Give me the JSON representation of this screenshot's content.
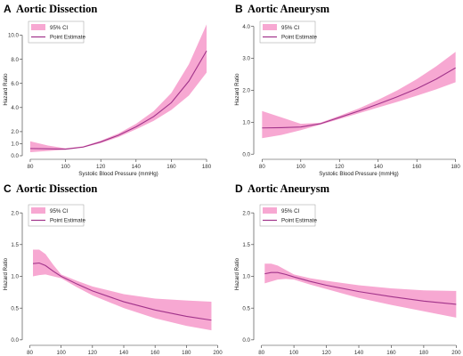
{
  "colors": {
    "ci_band": "#f7a8d2",
    "point_estimate": "#a1338a",
    "axis": "#333333"
  },
  "chart_data": [
    {
      "type": "line",
      "panel_label": "A",
      "title": "Aortic Dissection",
      "xlabel": "Systolic Blood Pressure (mmHg)",
      "ylabel": "Hazard Ratio",
      "xlim": [
        78,
        182
      ],
      "ylim": [
        0,
        11
      ],
      "x_ticks": [
        80,
        100,
        120,
        140,
        160,
        180
      ],
      "y_ticks": [
        0.0,
        1.0,
        2.0,
        4.0,
        6.0,
        8.0,
        10.0
      ],
      "y_tick_labels": [
        "0.0",
        "1.0",
        "2.0",
        "4.0",
        "6.0",
        "8.0",
        "10.0"
      ],
      "legend": {
        "position": "top-left",
        "entries": [
          "95% CI",
          "Point Estimate"
        ]
      },
      "x": [
        80,
        90,
        100,
        110,
        120,
        130,
        140,
        150,
        160,
        170,
        180
      ],
      "point_estimate": [
        0.6,
        0.58,
        0.55,
        0.72,
        1.15,
        1.7,
        2.4,
        3.25,
        4.4,
        6.2,
        8.7
      ],
      "ci_lower": [
        0.3,
        0.4,
        0.5,
        0.68,
        1.05,
        1.55,
        2.2,
        2.9,
        3.8,
        5.0,
        6.9
      ],
      "ci_upper": [
        1.2,
        0.85,
        0.62,
        0.78,
        1.25,
        1.85,
        2.65,
        3.7,
        5.2,
        7.6,
        10.9
      ]
    },
    {
      "type": "line",
      "panel_label": "B",
      "title": "Aortic Aneurysm",
      "xlabel": "Systolic Blood Pressure (mmHg)",
      "ylabel": "Hazard Ratio",
      "xlim": [
        78,
        182
      ],
      "ylim": [
        -0.05,
        4.1
      ],
      "x_ticks": [
        80,
        100,
        120,
        140,
        160,
        180
      ],
      "y_ticks": [
        0.0,
        1.0,
        2.0,
        3.0,
        4.0
      ],
      "y_tick_labels": [
        "0.0",
        "1.0",
        "2.0",
        "3.0",
        "4.0"
      ],
      "legend": {
        "position": "top-left",
        "entries": [
          "95% CI",
          "Point Estimate"
        ]
      },
      "x": [
        80,
        90,
        100,
        110,
        120,
        130,
        140,
        150,
        160,
        170,
        180
      ],
      "point_estimate": [
        0.82,
        0.83,
        0.85,
        0.95,
        1.15,
        1.35,
        1.57,
        1.8,
        2.05,
        2.35,
        2.7
      ],
      "ci_lower": [
        0.5,
        0.6,
        0.75,
        0.92,
        1.1,
        1.28,
        1.46,
        1.64,
        1.83,
        2.03,
        2.25
      ],
      "ci_upper": [
        1.35,
        1.15,
        0.95,
        0.98,
        1.2,
        1.43,
        1.7,
        2.0,
        2.35,
        2.75,
        3.2
      ]
    },
    {
      "type": "line",
      "panel_label": "C",
      "title": "Aortic Dissection",
      "xlabel": "Fasting Plasma Glucose (mg/dL)",
      "ylabel": "Hazard Ratio",
      "xlim": [
        78,
        202
      ],
      "ylim": [
        -0.03,
        2.1
      ],
      "x_ticks": [
        80,
        100,
        120,
        140,
        160,
        180,
        200
      ],
      "y_ticks": [
        0.0,
        0.5,
        1.0,
        1.5,
        2.0
      ],
      "y_tick_labels": [
        "0.0",
        "0.5",
        "1.0",
        "1.5",
        "2.0"
      ],
      "legend": {
        "position": "top-left",
        "entries": [
          "95% CI",
          "Point Estimate"
        ]
      },
      "x": [
        82,
        86,
        90,
        95,
        100,
        110,
        120,
        140,
        160,
        180,
        196
      ],
      "point_estimate": [
        1.2,
        1.21,
        1.17,
        1.08,
        1.0,
        0.88,
        0.77,
        0.6,
        0.47,
        0.37,
        0.31
      ],
      "ci_lower": [
        1.0,
        1.02,
        1.03,
        1.0,
        0.97,
        0.83,
        0.7,
        0.5,
        0.34,
        0.22,
        0.15
      ],
      "ci_upper": [
        1.42,
        1.42,
        1.35,
        1.18,
        1.03,
        0.93,
        0.84,
        0.72,
        0.65,
        0.62,
        0.6
      ]
    },
    {
      "type": "line",
      "panel_label": "D",
      "title": "Aortic Aneurysm",
      "xlabel": "Fasting Plasma Glucose (mg/dL)",
      "ylabel": "Hazard Ratio",
      "xlim": [
        78,
        202
      ],
      "ylim": [
        -0.03,
        2.1
      ],
      "x_ticks": [
        80,
        100,
        120,
        140,
        160,
        180,
        200
      ],
      "y_ticks": [
        0.0,
        0.5,
        1.0,
        1.5,
        2.0
      ],
      "y_tick_labels": [
        "0.0",
        "0.5",
        "1.0",
        "1.5",
        "2.0"
      ],
      "legend": {
        "position": "top-left",
        "entries": [
          "95% CI",
          "Point Estimate"
        ]
      },
      "x": [
        82,
        86,
        90,
        95,
        100,
        110,
        120,
        140,
        160,
        180,
        200
      ],
      "point_estimate": [
        1.04,
        1.06,
        1.06,
        1.03,
        0.99,
        0.92,
        0.86,
        0.76,
        0.68,
        0.61,
        0.56
      ],
      "ci_lower": [
        0.89,
        0.92,
        0.95,
        0.96,
        0.95,
        0.87,
        0.8,
        0.66,
        0.55,
        0.45,
        0.35
      ],
      "ci_upper": [
        1.2,
        1.2,
        1.17,
        1.1,
        1.03,
        0.97,
        0.93,
        0.86,
        0.81,
        0.78,
        0.77
      ]
    }
  ]
}
